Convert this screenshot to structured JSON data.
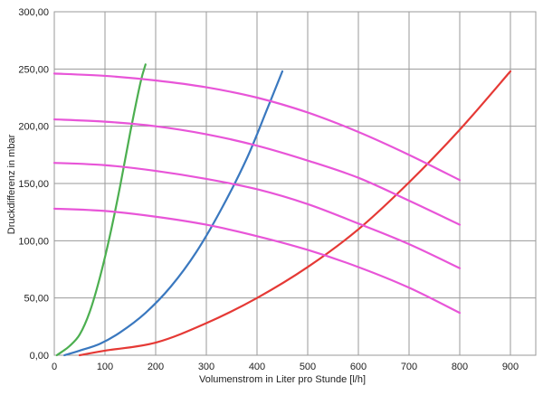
{
  "chart_data": {
    "type": "line",
    "title": "",
    "xlabel": "Volumenstrom in Liter pro Stunde [l/h]",
    "ylabel": "Druckdifferenz in mbar",
    "xlim": [
      0,
      950
    ],
    "ylim": [
      0,
      300
    ],
    "xticks": [
      0,
      100,
      200,
      300,
      400,
      500,
      600,
      700,
      800,
      900
    ],
    "xtick_labels": [
      "0",
      "100",
      "200",
      "300",
      "400",
      "500",
      "600",
      "700",
      "800",
      "900"
    ],
    "yticks": [
      0,
      50,
      100,
      150,
      200,
      250,
      300
    ],
    "ytick_labels": [
      "0,00",
      "50,00",
      "100,00",
      "150,00",
      "200,00",
      "250,00",
      "300,00"
    ],
    "grid": true,
    "legend": "none",
    "series": [
      {
        "color": "#4caf50",
        "x": [
          5,
          15,
          30,
          50,
          70,
          90,
          110,
          130,
          150,
          170,
          180
        ],
        "y": [
          0,
          3,
          8,
          18,
          38,
          68,
          105,
          148,
          195,
          238,
          254
        ]
      },
      {
        "color": "#3a78bf",
        "x": [
          20,
          50,
          90,
          130,
          180,
          230,
          280,
          330,
          380,
          420,
          450
        ],
        "y": [
          0,
          4,
          10,
          20,
          37,
          60,
          90,
          128,
          172,
          215,
          248
        ]
      },
      {
        "color": "#e53935",
        "x": [
          50,
          100,
          200,
          300,
          400,
          500,
          600,
          700,
          800,
          900
        ],
        "y": [
          0,
          4,
          11,
          28,
          50,
          77,
          110,
          151,
          197,
          248
        ]
      },
      {
        "color": "#e855d8",
        "x": [
          0,
          100,
          200,
          300,
          400,
          500,
          600,
          700,
          800
        ],
        "y": [
          246,
          244,
          240,
          234,
          225,
          212,
          195,
          175,
          153
        ]
      },
      {
        "color": "#e855d8",
        "x": [
          0,
          100,
          200,
          300,
          400,
          500,
          600,
          700,
          800
        ],
        "y": [
          206,
          204,
          200,
          193,
          183,
          170,
          155,
          135,
          114
        ]
      },
      {
        "color": "#e855d8",
        "x": [
          0,
          100,
          200,
          300,
          400,
          500,
          600,
          700,
          800
        ],
        "y": [
          168,
          166,
          161,
          154,
          145,
          132,
          115,
          97,
          76
        ]
      },
      {
        "color": "#e855d8",
        "x": [
          0,
          100,
          200,
          300,
          400,
          500,
          600,
          700,
          800
        ],
        "y": [
          128,
          126,
          121,
          114,
          104,
          92,
          77,
          59,
          37
        ]
      }
    ]
  }
}
